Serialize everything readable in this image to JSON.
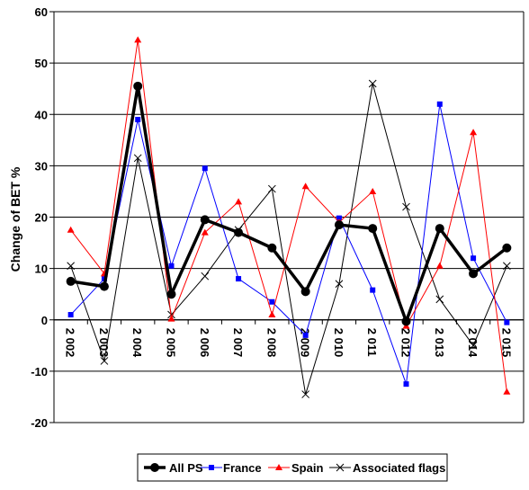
{
  "chart_data": {
    "type": "line",
    "title": "",
    "xlabel": "",
    "ylabel": "Change of BET %",
    "ylim": [
      -20,
      60
    ],
    "yticks": [
      -20,
      -10,
      0,
      10,
      20,
      30,
      40,
      50,
      60
    ],
    "grid": "horizontal",
    "legend_position": "bottom",
    "categories": [
      "2 002",
      "2 003",
      "2 004",
      "2 005",
      "2 006",
      "2 007",
      "2 008",
      "2 009",
      "2 010",
      "2 011",
      "2 012",
      "2 013",
      "2 014",
      "2 015"
    ],
    "series": [
      {
        "name": "All PS",
        "color": "#000000",
        "marker": "circle",
        "values": [
          7.5,
          6.5,
          45.5,
          5,
          19.5,
          17,
          14,
          5.5,
          18.5,
          17.8,
          -0.3,
          17.8,
          9,
          14
        ]
      },
      {
        "name": "France",
        "color": "#0000ff",
        "marker": "square",
        "values": [
          1,
          8,
          39,
          10.5,
          29.5,
          8,
          3.5,
          -3,
          19.8,
          5.8,
          -12.5,
          42,
          12,
          -0.5
        ]
      },
      {
        "name": "Spain",
        "color": "#ff0000",
        "marker": "triangle",
        "values": [
          17.5,
          9,
          54.5,
          0.2,
          17,
          23,
          1,
          26,
          19,
          25,
          -1.2,
          10.5,
          36.5,
          -14
        ]
      },
      {
        "name": "Associated flags",
        "color": "#000000",
        "marker": "x",
        "values": [
          10.5,
          -8,
          31.5,
          1,
          8.5,
          17.5,
          25.5,
          -14.5,
          7,
          46,
          22,
          4,
          -5,
          10.5
        ]
      }
    ]
  }
}
